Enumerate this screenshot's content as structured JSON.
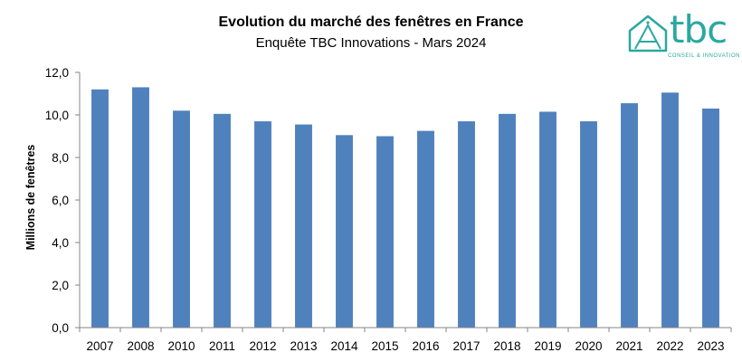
{
  "chart_data": {
    "type": "bar",
    "title": "Evolution du marché des fenêtres en France",
    "subtitle": "Enquête TBC Innovations - Mars 2024",
    "xlabel": "",
    "ylabel": "Millions de fenêtres",
    "categories": [
      "2007",
      "2008",
      "2010",
      "2011",
      "2012",
      "2013",
      "2014",
      "2015",
      "2016",
      "2017",
      "2018",
      "2019",
      "2020",
      "2021",
      "2022",
      "2023"
    ],
    "values": [
      11.2,
      11.3,
      10.2,
      10.05,
      9.7,
      9.55,
      9.05,
      9.0,
      9.25,
      9.7,
      10.05,
      10.15,
      9.7,
      10.55,
      11.05,
      10.3
    ],
    "ylim": [
      0,
      12
    ],
    "yticks": [
      "0,0",
      "2,0",
      "4,0",
      "6,0",
      "8,0",
      "10,0",
      "12,0"
    ],
    "grid": false,
    "bar_color": "#4f81bd"
  },
  "logo": {
    "text": "tbc",
    "tagline": "CONSEIL & INNOVATION",
    "color": "#2aa8a0"
  }
}
